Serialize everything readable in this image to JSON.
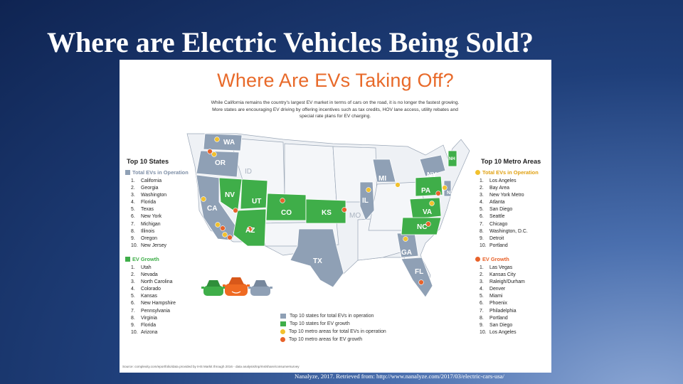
{
  "slide": {
    "title": "Where are Electric Vehicles Being Sold?",
    "citation": "Nanalyze, 2017. Retrieved from: http://www.nanalyze.com/2017/03/electric-cars-usa/"
  },
  "infographic": {
    "title": "Where Are EVs Taking Off?",
    "intro": "While California remains the country's largest EV market in terms of cars on the road, it is no longer the fastest growing. More states are encouraging EV driving by offering incentives such as tax credits, HOV lane access, utility rebates and special rate plans for EV charging.",
    "footnote": "Source: complexity.com/eportfolio/data provided by IHS Markit through 2016 - data analysis/tnp/ms/share/consumersurvey",
    "colors": {
      "gray_state": "#8fa0b5",
      "green_state": "#3fae49",
      "yellow_dot": "#f2c12e",
      "orange_dot": "#e8622a",
      "title_orange": "#e86a2a"
    },
    "left_panel": {
      "heading": "Top 10 States",
      "total_heading": "Total EVs in Operation",
      "total_list": [
        "California",
        "Georgia",
        "Washington",
        "Florida",
        "Texas",
        "New York",
        "Michigan",
        "Illinois",
        "Oregon",
        "New Jersey"
      ],
      "growth_heading": "EV Growth",
      "growth_list": [
        "Utah",
        "Nevada",
        "North Carolina",
        "Colorado",
        "Kansas",
        "New Hampshire",
        "Pennsylvania",
        "Virginia",
        "Florida",
        "Arizona"
      ]
    },
    "right_panel": {
      "heading": "Top 10 Metro Areas",
      "total_heading": "Total EVs in Operation",
      "total_list": [
        "Los Angeles",
        "Bay Area",
        "New York Metro",
        "Atlanta",
        "San Diego",
        "Seattle",
        "Chicago",
        "Washington, D.C.",
        "Detroit",
        "Portland"
      ],
      "growth_heading": "EV Growth",
      "growth_list": [
        "Las Vegas",
        "Kansas City",
        "Raleigh/Durham",
        "Denver",
        "Miami",
        "Phoenix",
        "Philadelphia",
        "Portland",
        "San Diego",
        "Los Angeles"
      ]
    },
    "legend": [
      {
        "label": "Top 10 states for total EVs in operation",
        "kind": "square",
        "color": "#8fa0b5"
      },
      {
        "label": "Top 10 states for EV growth",
        "kind": "square",
        "color": "#3fae49"
      },
      {
        "label": "Top 10 metro areas for total EVs in operation",
        "kind": "dot",
        "color": "#f2c12e"
      },
      {
        "label": "Top 10 metro areas for EV growth",
        "kind": "dot",
        "color": "#e8622a"
      }
    ],
    "map_labels": {
      "wa": "WA",
      "or": "OR",
      "id": "ID",
      "nv": "NV",
      "ca": "CA",
      "ut": "UT",
      "az": "AZ",
      "co": "CO",
      "ks": "KS",
      "mo": "MO",
      "tx": "TX",
      "il": "IL",
      "mi": "MI",
      "ny": "NY",
      "pa": "PA",
      "nj": "NJ",
      "va": "VA",
      "nc": "NC",
      "ga": "GA",
      "fl": "FL",
      "nh": "NH"
    },
    "car_icons": [
      "green-car-icon",
      "orange-car-icon",
      "gray-car-icon"
    ]
  }
}
